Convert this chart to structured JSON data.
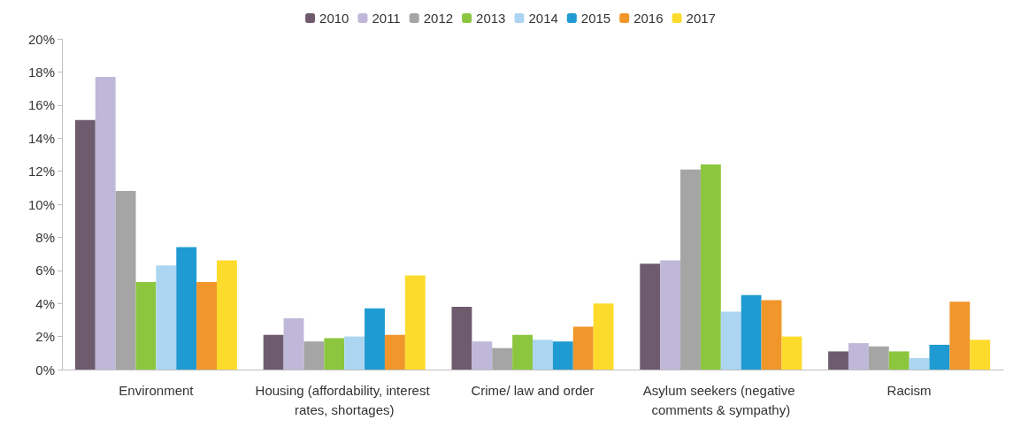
{
  "chart_data": {
    "type": "bar",
    "categories": [
      "Environment",
      "Housing (affordability, interest rates, shortages)",
      "Crime/ law and order",
      "Asylum seekers (negative comments & sympathy)",
      "Racism"
    ],
    "series": [
      {
        "name": "2010",
        "color": "#6e5b6e",
        "values": [
          15.1,
          2.1,
          3.8,
          6.4,
          1.1
        ]
      },
      {
        "name": "2011",
        "color": "#bfb8d9",
        "values": [
          17.7,
          3.1,
          1.7,
          6.6,
          1.6
        ]
      },
      {
        "name": "2012",
        "color": "#a5a5a5",
        "values": [
          10.8,
          1.7,
          1.3,
          12.1,
          1.4
        ]
      },
      {
        "name": "2013",
        "color": "#8cc63f",
        "values": [
          5.3,
          1.9,
          2.1,
          12.4,
          1.1
        ]
      },
      {
        "name": "2014",
        "color": "#abd5f1",
        "values": [
          6.3,
          2.0,
          1.8,
          3.5,
          0.7
        ]
      },
      {
        "name": "2015",
        "color": "#1f9bd1",
        "values": [
          7.4,
          3.7,
          1.7,
          4.5,
          1.5
        ]
      },
      {
        "name": "2016",
        "color": "#f0962a",
        "values": [
          5.3,
          2.1,
          2.6,
          4.2,
          4.1
        ]
      },
      {
        "name": "2017",
        "color": "#fddb2c",
        "values": [
          6.6,
          5.7,
          4.0,
          2.0,
          1.8
        ]
      }
    ],
    "ylim": [
      0,
      20
    ],
    "yticks": [
      {
        "value": 0,
        "label": "0%"
      },
      {
        "value": 2,
        "label": "2%"
      },
      {
        "value": 4,
        "label": "4%"
      },
      {
        "value": 6,
        "label": "6%"
      },
      {
        "value": 8,
        "label": "8%"
      },
      {
        "value": 10,
        "label": "10%"
      },
      {
        "value": 12,
        "label": "12%"
      },
      {
        "value": 14,
        "label": "14%"
      },
      {
        "value": 16,
        "label": "16%"
      },
      {
        "value": 18,
        "label": "18%"
      },
      {
        "value": 20,
        "label": "20%"
      }
    ],
    "grid": false,
    "legend": "top"
  }
}
